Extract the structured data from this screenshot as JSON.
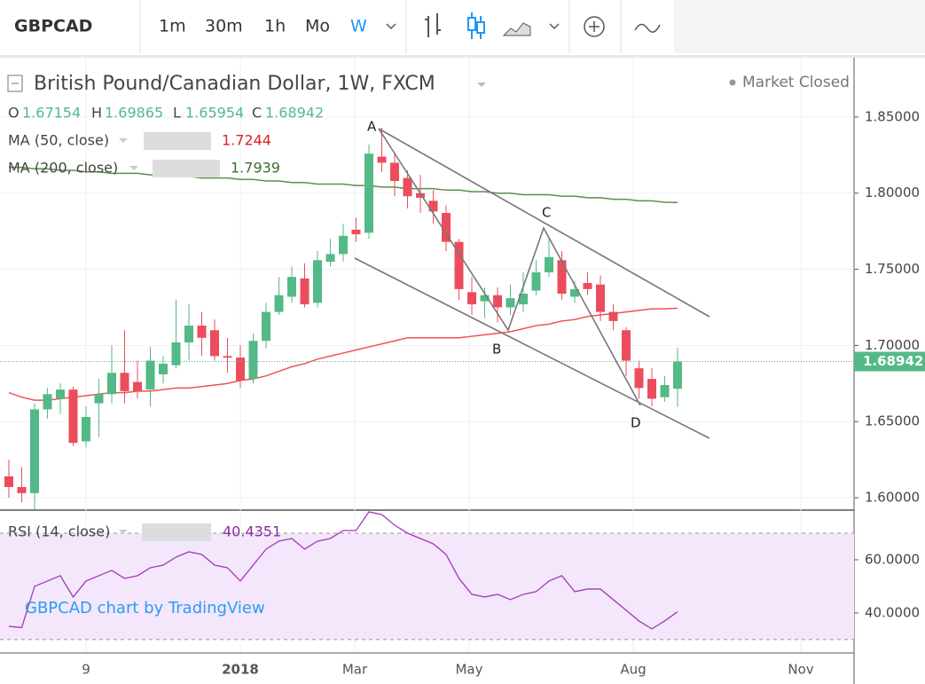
{
  "toolbar": {
    "symbol": "GBPCAD",
    "intervals": [
      "1m",
      "30m",
      "1h",
      "Mo",
      "W"
    ]
  },
  "chart_data": {
    "type": "candlestick",
    "title": "British Pound/Canadian Dollar, 1W, FXCM",
    "status": "Market Closed",
    "ohlc_labels": [
      "O",
      "H",
      "L",
      "C"
    ],
    "up_color": "#53b987",
    "down_color": "#eb4d5c",
    "open": [
      1.614,
      1.607,
      1.603,
      1.658,
      1.665,
      1.671,
      1.637,
      1.662,
      1.668,
      1.682,
      1.676,
      1.671,
      1.681,
      1.687,
      1.702,
      1.713,
      1.71,
      1.693,
      1.692,
      1.678,
      1.703,
      1.722,
      1.732,
      1.744,
      1.728,
      1.755,
      1.76,
      1.776,
      1.774,
      1.824,
      1.82,
      1.81,
      1.8,
      1.795,
      1.787,
      1.768,
      1.735,
      1.729,
      1.733,
      1.725,
      1.727,
      1.736,
      1.748,
      1.756,
      1.732,
      1.741,
      1.74,
      1.722,
      1.71,
      1.685,
      1.678,
      1.666,
      1.67154
    ],
    "high": [
      1.625,
      1.62,
      1.662,
      1.672,
      1.675,
      1.673,
      1.66,
      1.678,
      1.7,
      1.71,
      1.69,
      1.699,
      1.693,
      1.73,
      1.727,
      1.722,
      1.717,
      1.705,
      1.7,
      1.708,
      1.728,
      1.745,
      1.752,
      1.754,
      1.762,
      1.77,
      1.78,
      1.784,
      1.832,
      1.843,
      1.826,
      1.815,
      1.812,
      1.802,
      1.792,
      1.77,
      1.745,
      1.738,
      1.738,
      1.74,
      1.748,
      1.756,
      1.77,
      1.762,
      1.742,
      1.748,
      1.746,
      1.727,
      1.712,
      1.69,
      1.685,
      1.68,
      1.69865
    ],
    "low": [
      1.6,
      1.597,
      1.592,
      1.652,
      1.655,
      1.634,
      1.633,
      1.64,
      1.662,
      1.662,
      1.665,
      1.66,
      1.675,
      1.685,
      1.69,
      1.693,
      1.69,
      1.682,
      1.672,
      1.675,
      1.698,
      1.72,
      1.728,
      1.725,
      1.725,
      1.752,
      1.755,
      1.768,
      1.77,
      1.814,
      1.798,
      1.79,
      1.787,
      1.78,
      1.762,
      1.73,
      1.72,
      1.718,
      1.715,
      1.72,
      1.722,
      1.733,
      1.745,
      1.73,
      1.728,
      1.733,
      1.716,
      1.71,
      1.68,
      1.665,
      1.66,
      1.663,
      1.65954
    ],
    "close": [
      1.607,
      1.603,
      1.658,
      1.668,
      1.671,
      1.636,
      1.653,
      1.668,
      1.682,
      1.67,
      1.67,
      1.69,
      1.688,
      1.702,
      1.713,
      1.705,
      1.693,
      1.692,
      1.677,
      1.703,
      1.722,
      1.733,
      1.745,
      1.727,
      1.756,
      1.76,
      1.772,
      1.773,
      1.826,
      1.82,
      1.808,
      1.798,
      1.797,
      1.788,
      1.768,
      1.737,
      1.727,
      1.733,
      1.725,
      1.731,
      1.734,
      1.748,
      1.758,
      1.734,
      1.737,
      1.737,
      1.722,
      1.716,
      1.69,
      1.672,
      1.665,
      1.674,
      1.68942
    ],
    "indicators": [
      {
        "name": "MA (50, close)",
        "color": "#f0534f",
        "values": [
          1.669,
          1.666,
          1.664,
          1.664,
          1.665,
          1.666,
          1.667,
          1.668,
          1.669,
          1.669,
          1.67,
          1.67,
          1.671,
          1.672,
          1.672,
          1.673,
          1.674,
          1.675,
          1.677,
          1.678,
          1.68,
          1.683,
          1.686,
          1.688,
          1.691,
          1.693,
          1.695,
          1.697,
          1.699,
          1.701,
          1.703,
          1.705,
          1.705,
          1.705,
          1.705,
          1.705,
          1.706,
          1.707,
          1.708,
          1.709,
          1.711,
          1.713,
          1.714,
          1.716,
          1.717,
          1.719,
          1.72,
          1.721,
          1.722,
          1.723,
          1.724,
          1.724,
          1.7244
        ]
      },
      {
        "name": "MA (200, close)",
        "color": "#5d8f4e",
        "values": [
          1.817,
          1.817,
          1.816,
          1.816,
          1.815,
          1.815,
          1.814,
          1.814,
          1.813,
          1.813,
          1.813,
          1.812,
          1.812,
          1.811,
          1.811,
          1.81,
          1.81,
          1.81,
          1.809,
          1.809,
          1.808,
          1.808,
          1.807,
          1.807,
          1.806,
          1.806,
          1.806,
          1.805,
          1.805,
          1.804,
          1.804,
          1.803,
          1.803,
          1.803,
          1.802,
          1.802,
          1.801,
          1.801,
          1.8,
          1.8,
          1.799,
          1.799,
          1.799,
          1.798,
          1.798,
          1.797,
          1.797,
          1.796,
          1.796,
          1.795,
          1.795,
          1.794,
          1.7939
        ]
      }
    ],
    "ylim": [
      1.593,
      1.889
    ],
    "yticks": [
      {
        "value": 1.85,
        "label": "1.85000"
      },
      {
        "value": 1.8,
        "label": "1.80000"
      },
      {
        "value": 1.75,
        "label": "1.75000"
      },
      {
        "value": 1.7,
        "label": "1.70000"
      },
      {
        "value": 1.65,
        "label": "1.65000"
      },
      {
        "value": 1.6,
        "label": "1.60000"
      }
    ],
    "xtick_labels": [
      "9",
      "2018",
      "Mar",
      "May",
      "Aug",
      "Nov"
    ],
    "annotations": [
      "A",
      "B",
      "C",
      "D"
    ],
    "rsi": {
      "name": "RSI (14, close)",
      "color": "#a03cb4",
      "values": [
        35,
        34.5,
        50,
        52,
        54,
        46,
        52,
        54,
        56,
        53,
        54,
        57,
        58,
        61,
        63,
        62,
        58,
        57,
        52,
        58,
        64,
        67,
        68,
        64,
        67,
        68,
        71,
        71,
        78,
        77,
        73,
        70,
        68,
        66,
        62,
        53,
        47,
        46,
        47,
        45,
        47,
        48,
        52,
        54,
        48,
        49,
        49,
        45,
        41,
        37,
        34,
        37,
        40.4351
      ],
      "ylim": [
        25.3,
        78
      ],
      "band": [
        30,
        70
      ],
      "yticks": [
        {
          "value": 60,
          "label": "60.0000"
        },
        {
          "value": 40,
          "label": "40.0000"
        }
      ]
    },
    "watermark": "GBPCAD chart by TradingView"
  }
}
